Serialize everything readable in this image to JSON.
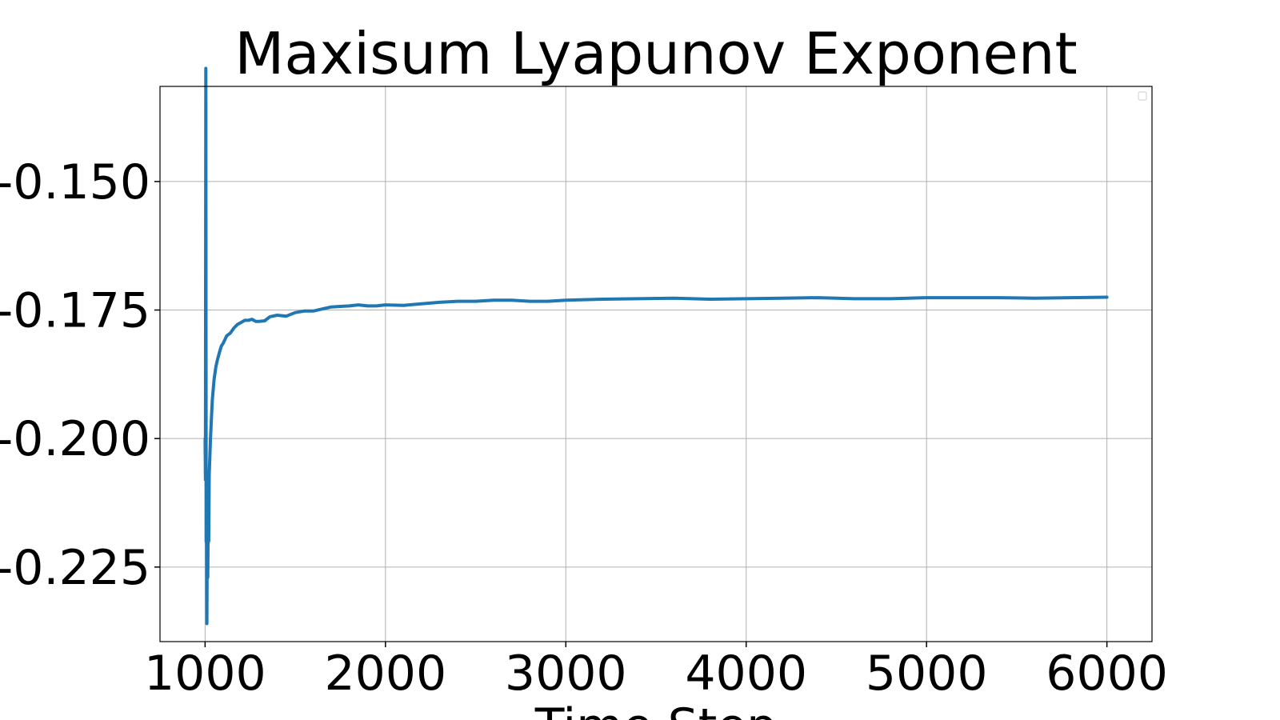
{
  "chart_data": {
    "type": "line",
    "title": "Maxisum Lyapunov Exponent",
    "xlabel": "Time Step",
    "ylabel": "",
    "xlim": [
      750,
      6250
    ],
    "ylim": [
      -0.2395,
      -0.1315
    ],
    "xticks": [
      1000,
      2000,
      3000,
      4000,
      5000,
      6000
    ],
    "xtick_labels": [
      "1000",
      "2000",
      "3000",
      "4000",
      "5000",
      "6000"
    ],
    "yticks": [
      -0.15,
      -0.175,
      -0.2,
      -0.225
    ],
    "ytick_labels": [
      "-0.150",
      "-0.175",
      "-0.200",
      "-0.225"
    ],
    "grid": true,
    "legend": "top-right (empty)",
    "series": [
      {
        "color": "#1f77b4",
        "x": [
          1000,
          1002,
          1004,
          1006,
          1008,
          1010,
          1012,
          1015,
          1018,
          1020,
          1023,
          1026,
          1030,
          1035,
          1040,
          1050,
          1060,
          1070,
          1080,
          1090,
          1100,
          1120,
          1140,
          1160,
          1180,
          1200,
          1220,
          1240,
          1260,
          1280,
          1300,
          1330,
          1360,
          1400,
          1450,
          1500,
          1550,
          1600,
          1650,
          1700,
          1750,
          1800,
          1850,
          1900,
          1950,
          2000,
          2100,
          2200,
          2300,
          2400,
          2500,
          2600,
          2700,
          2800,
          2900,
          3000,
          3200,
          3400,
          3600,
          3800,
          4000,
          4200,
          4400,
          4600,
          4800,
          5000,
          5200,
          5400,
          5600,
          5800,
          6000
        ],
        "y": [
          -0.2,
          -0.208,
          -0.128,
          -0.22,
          -0.212,
          -0.236,
          -0.215,
          -0.227,
          -0.212,
          -0.22,
          -0.207,
          -0.204,
          -0.2,
          -0.196,
          -0.1925,
          -0.1885,
          -0.186,
          -0.1845,
          -0.1832,
          -0.182,
          -0.1815,
          -0.18,
          -0.1795,
          -0.1785,
          -0.1778,
          -0.1774,
          -0.177,
          -0.177,
          -0.1768,
          -0.1772,
          -0.1772,
          -0.1771,
          -0.1763,
          -0.176,
          -0.1762,
          -0.1755,
          -0.1752,
          -0.1752,
          -0.1748,
          -0.1744,
          -0.1743,
          -0.1742,
          -0.174,
          -0.1742,
          -0.1742,
          -0.174,
          -0.1741,
          -0.1738,
          -0.1735,
          -0.1733,
          -0.1733,
          -0.1731,
          -0.1731,
          -0.1733,
          -0.1733,
          -0.1731,
          -0.1729,
          -0.1728,
          -0.1727,
          -0.1729,
          -0.1728,
          -0.1727,
          -0.1726,
          -0.1728,
          -0.1728,
          -0.1726,
          -0.1726,
          -0.1726,
          -0.1727,
          -0.1726,
          -0.1725
        ]
      }
    ]
  }
}
